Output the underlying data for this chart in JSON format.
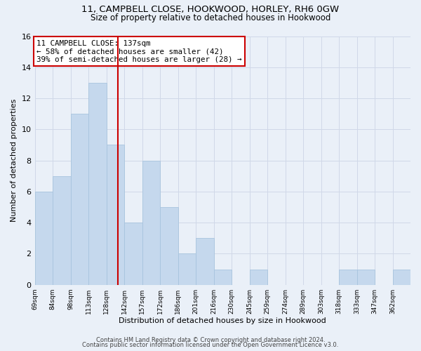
{
  "title1": "11, CAMPBELL CLOSE, HOOKWOOD, HORLEY, RH6 0GW",
  "title2": "Size of property relative to detached houses in Hookwood",
  "xlabel": "Distribution of detached houses by size in Hookwood",
  "ylabel": "Number of detached properties",
  "bar_color": "#c5d8ed",
  "bar_edge_color": "#a8c4de",
  "bins": [
    69,
    84,
    98,
    113,
    128,
    142,
    157,
    172,
    186,
    201,
    216,
    230,
    245,
    259,
    274,
    289,
    303,
    318,
    333,
    347,
    362
  ],
  "counts": [
    6,
    7,
    11,
    13,
    9,
    4,
    8,
    5,
    2,
    3,
    1,
    0,
    1,
    0,
    0,
    0,
    0,
    1,
    1,
    0,
    1
  ],
  "tick_labels": [
    "69sqm",
    "84sqm",
    "98sqm",
    "113sqm",
    "128sqm",
    "142sqm",
    "157sqm",
    "172sqm",
    "186sqm",
    "201sqm",
    "216sqm",
    "230sqm",
    "245sqm",
    "259sqm",
    "274sqm",
    "289sqm",
    "303sqm",
    "318sqm",
    "333sqm",
    "347sqm",
    "362sqm"
  ],
  "vline_x": 137,
  "vline_color": "#cc0000",
  "annotation_line1": "11 CAMPBELL CLOSE: 137sqm",
  "annotation_line2": "← 58% of detached houses are smaller (42)",
  "annotation_line3": "39% of semi-detached houses are larger (28) →",
  "annotation_box_color": "#ffffff",
  "annotation_box_edge": "#cc0000",
  "ylim": [
    0,
    16
  ],
  "yticks": [
    0,
    2,
    4,
    6,
    8,
    10,
    12,
    14,
    16
  ],
  "footer1": "Contains HM Land Registry data © Crown copyright and database right 2024.",
  "footer2": "Contains public sector information licensed under the Open Government Licence v3.0.",
  "grid_color": "#d0d8e8",
  "background_color": "#eaf0f8"
}
